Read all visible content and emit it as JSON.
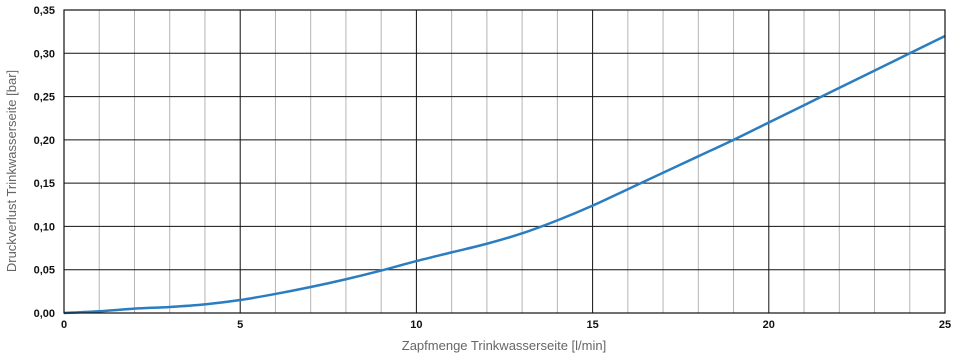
{
  "chart_data": {
    "type": "line",
    "xlabel": "Zapfmenge Trinkwasserseite [l/min]",
    "ylabel": "Druckverlust Trinkwasserseite [bar]",
    "xlim": [
      0,
      25
    ],
    "ylim": [
      0,
      0.35
    ],
    "x_major_ticks": [
      0,
      5,
      10,
      15,
      20,
      25
    ],
    "x_tick_labels": [
      "0",
      "5",
      "10",
      "15",
      "20",
      "25"
    ],
    "x_minor_step": 1,
    "y_ticks": [
      0,
      0.05,
      0.1,
      0.15,
      0.2,
      0.25,
      0.3,
      0.35
    ],
    "y_tick_labels": [
      "0,00",
      "0,05",
      "0,10",
      "0,15",
      "0,20",
      "0,25",
      "0,30",
      "0,35"
    ],
    "grid": true,
    "series": [
      {
        "color": "#2a7dc1",
        "x": [
          0,
          1,
          2,
          3,
          4,
          5,
          6,
          7,
          8,
          9,
          10,
          11,
          12,
          13,
          14,
          15,
          16,
          17,
          18,
          19,
          20,
          21,
          22,
          23,
          24,
          25
        ],
        "y": [
          0,
          0.002,
          0.005,
          0.007,
          0.01,
          0.015,
          0.022,
          0.03,
          0.039,
          0.049,
          0.06,
          0.07,
          0.08,
          0.092,
          0.107,
          0.124,
          0.143,
          0.162,
          0.181,
          0.2,
          0.22,
          0.24,
          0.26,
          0.28,
          0.3,
          0.32
        ]
      }
    ]
  }
}
